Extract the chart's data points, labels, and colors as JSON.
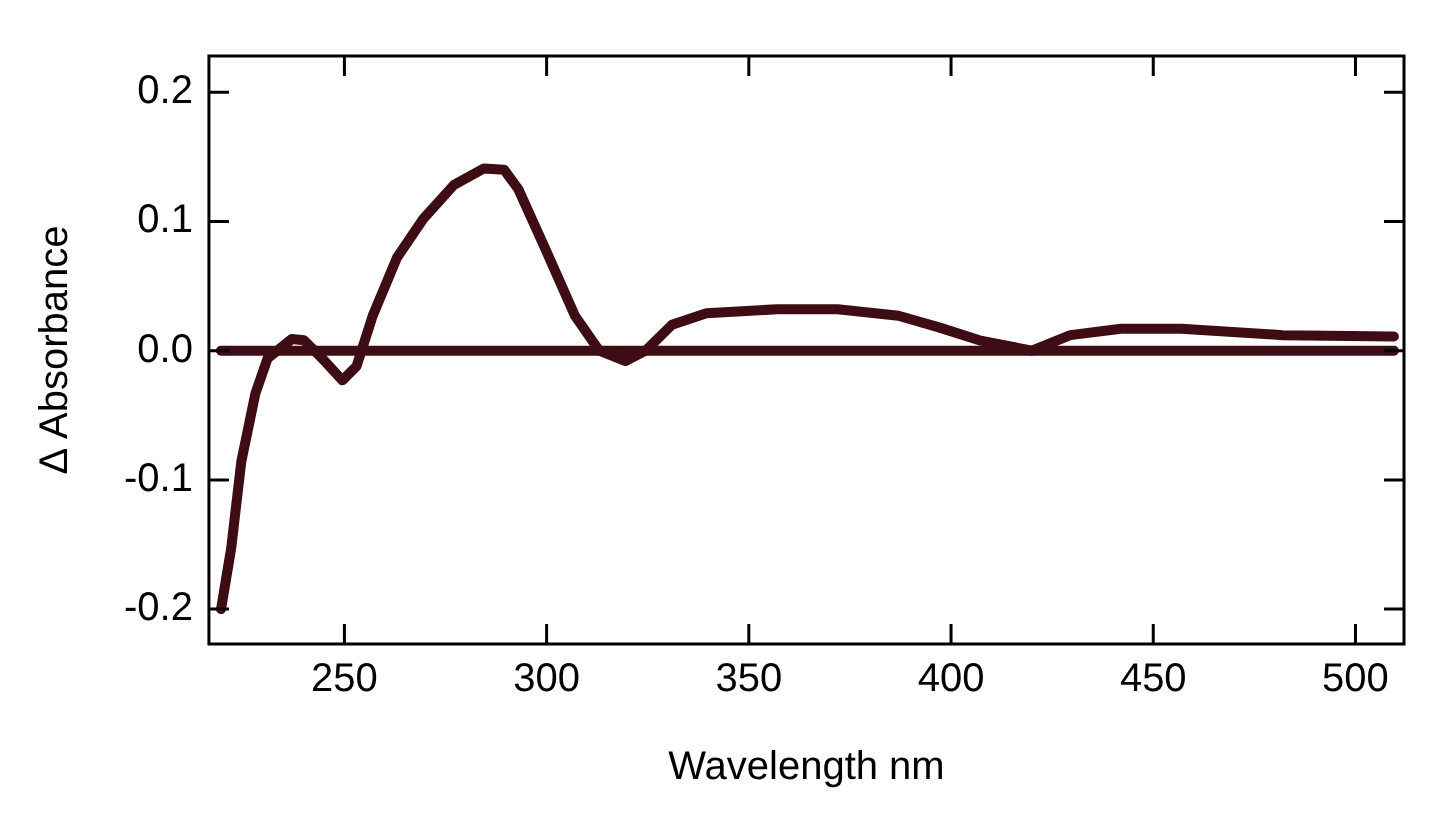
{
  "chart_data": {
    "type": "line",
    "xlabel": "Wavelength nm",
    "ylabel": "Δ Absorbance",
    "xlim": [
      216.5,
      512
    ],
    "ylim": [
      -0.227,
      0.228
    ],
    "xticks": [
      250,
      300,
      350,
      400,
      450,
      500
    ],
    "yticks": [
      {
        "value": -0.2,
        "label": "-0.2"
      },
      {
        "value": -0.1,
        "label": "-0.1"
      },
      {
        "value": 0,
        "label": "0.0"
      },
      {
        "value": 0.1,
        "label": "0.1"
      },
      {
        "value": 0.2,
        "label": "0.2"
      }
    ],
    "grid": false,
    "legend": false,
    "marker": "none",
    "line_style": "solid",
    "series": [
      {
        "color": "#3d0c14",
        "x": [
          219.5,
          222,
          224.5,
          228,
          231,
          237,
          240,
          244.5,
          249.5,
          253,
          257,
          263,
          269.5,
          277,
          284.5,
          289.5,
          293,
          299.5,
          307,
          313,
          319.5,
          324.5,
          331,
          339.5,
          357,
          372,
          387,
          397,
          407,
          420,
          429.5,
          442,
          457,
          482,
          509.5
        ],
        "values": [
          -0.2,
          -0.153,
          -0.086,
          -0.033,
          -0.006,
          0.009,
          0.008,
          -0.006,
          -0.023,
          -0.012,
          0.027,
          0.072,
          0.102,
          0.128,
          0.141,
          0.14,
          0.125,
          0.08,
          0.027,
          0,
          -0.008,
          0,
          0.02,
          0.029,
          0.032,
          0.032,
          0.027,
          0.018,
          0.008,
          0,
          0.012,
          0.017,
          0.017,
          0.012,
          0.011
        ]
      },
      {
        "color": "#3d0c14",
        "x": [
          219.5,
          509.5
        ],
        "values": [
          0,
          0
        ]
      }
    ]
  }
}
